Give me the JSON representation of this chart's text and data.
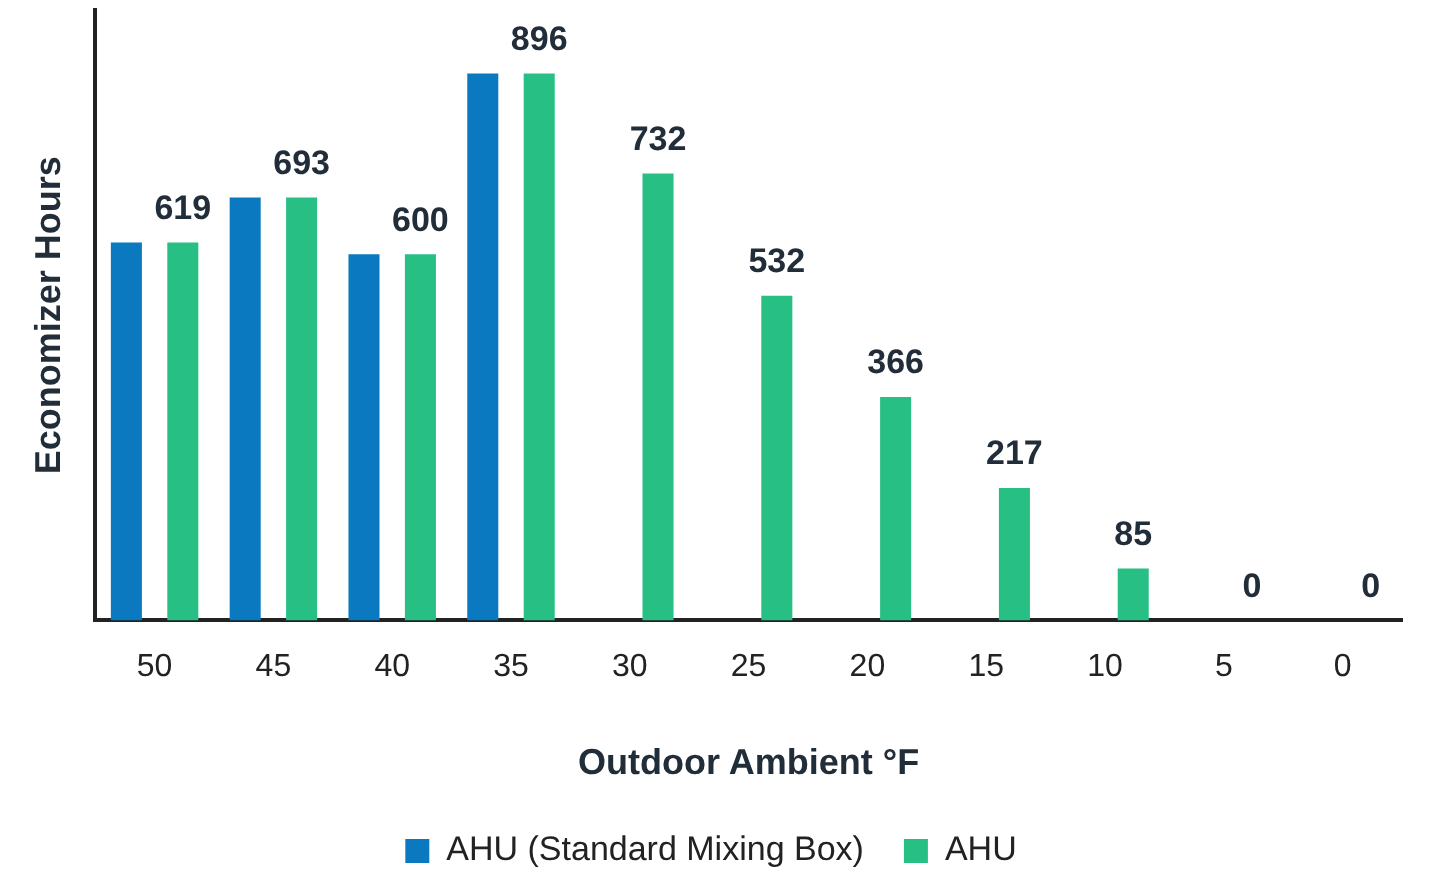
{
  "chart_data": {
    "type": "bar",
    "xlabel": "Outdoor Ambient °F",
    "ylabel": "Economizer Hours",
    "categories": [
      "50",
      "45",
      "40",
      "35",
      "30",
      "25",
      "20",
      "15",
      "10",
      "5",
      "0"
    ],
    "series": [
      {
        "name": "AHU (Standard Mixing Box)",
        "color": "#0a79c0",
        "values": [
          619,
          693,
          600,
          896,
          null,
          null,
          null,
          null,
          null,
          null,
          null
        ]
      },
      {
        "name": "AHU",
        "color": "#27bf84",
        "values": [
          619,
          693,
          600,
          896,
          732,
          532,
          366,
          217,
          85,
          0,
          0
        ],
        "value_labels": [
          "619",
          "693",
          "600",
          "896",
          "732",
          "532",
          "366",
          "217",
          "85",
          "0",
          "0"
        ]
      }
    ],
    "grid": false,
    "legend": "bottom"
  }
}
